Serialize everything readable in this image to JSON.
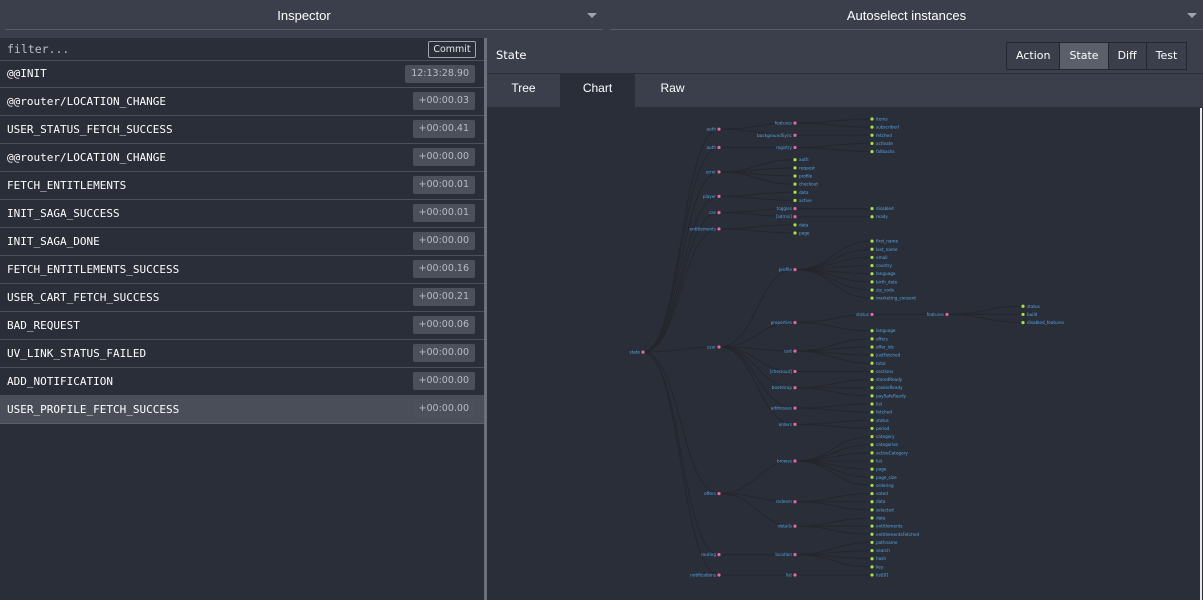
{
  "topbar": {
    "left_select": "Inspector",
    "right_select": "Autoselect instances"
  },
  "filter": {
    "placeholder": "filter...",
    "commit_label": "Commit"
  },
  "actions": [
    {
      "name": "@@INIT",
      "time": "12:13:28.90"
    },
    {
      "name": "@@router/LOCATION_CHANGE",
      "time": "+00:00.03"
    },
    {
      "name": "USER_STATUS_FETCH_SUCCESS",
      "time": "+00:00.41"
    },
    {
      "name": "@@router/LOCATION_CHANGE",
      "time": "+00:00.00"
    },
    {
      "name": "FETCH_ENTITLEMENTS",
      "time": "+00:00.01"
    },
    {
      "name": "INIT_SAGA_SUCCESS",
      "time": "+00:00.01"
    },
    {
      "name": "INIT_SAGA_DONE",
      "time": "+00:00.00"
    },
    {
      "name": "FETCH_ENTITLEMENTS_SUCCESS",
      "time": "+00:00.16"
    },
    {
      "name": "USER_CART_FETCH_SUCCESS",
      "time": "+00:00.21"
    },
    {
      "name": "BAD_REQUEST",
      "time": "+00:00.06"
    },
    {
      "name": "UV_LINK_STATUS_FAILED",
      "time": "+00:00.00"
    },
    {
      "name": "ADD_NOTIFICATION",
      "time": "+00:00.00"
    },
    {
      "name": "USER_PROFILE_FETCH_SUCCESS",
      "time": "+00:00.00",
      "selected": true
    }
  ],
  "state_panel": {
    "title": "State",
    "mode_tabs": [
      "Action",
      "State",
      "Diff",
      "Test"
    ],
    "active_mode": "State",
    "sub_tabs": [
      "Tree",
      "Chart",
      "Raw"
    ],
    "active_sub_tab": "Chart"
  },
  "colors": {
    "parent_node": "#e66aa2",
    "leaf_node": "#a8e14f",
    "link": "#24262c",
    "label": "#57a7e6"
  },
  "tree": {
    "name": "state",
    "children": [
      {
        "name": "auth",
        "children": [
          {
            "name": "features",
            "children": [
              {
                "name": "items"
              },
              {
                "name": "subscribed"
              }
            ]
          },
          {
            "name": "backgroundSync",
            "children": [
              {
                "name": "fetched"
              }
            ]
          }
        ]
      },
      {
        "name": "auth",
        "children": [
          {
            "name": "registry",
            "children": [
              {
                "name": "activate"
              },
              {
                "name": "fallbacks"
              }
            ]
          }
        ]
      },
      {
        "name": "error",
        "children": [
          {
            "name": "auth"
          },
          {
            "name": "request"
          },
          {
            "name": "profile"
          },
          {
            "name": "checkout"
          }
        ]
      },
      {
        "name": "player",
        "children": [
          {
            "name": "data"
          },
          {
            "name": "active"
          }
        ]
      },
      {
        "name": "cas",
        "children": [
          {
            "name": "toggles",
            "children": [
              {
                "name": "disabled"
              }
            ]
          },
          {
            "name": "[admin]",
            "children": [
              {
                "name": "ready"
              }
            ]
          }
        ]
      },
      {
        "name": "entitlements",
        "children": [
          {
            "name": "data"
          },
          {
            "name": "page"
          }
        ]
      },
      {
        "name": "user",
        "children": [
          {
            "name": "profile",
            "children": [
              {
                "name": "first_name"
              },
              {
                "name": "last_name"
              },
              {
                "name": "email"
              },
              {
                "name": "country"
              },
              {
                "name": "language"
              },
              {
                "name": "birth_date"
              },
              {
                "name": "zip_code"
              },
              {
                "name": "marketing_consent"
              }
            ]
          },
          {
            "name": "properties",
            "children": [
              {
                "name": "status",
                "children": [
                  {
                    "name": "features",
                    "children": [
                      {
                        "name": "status"
                      },
                      {
                        "name": "build"
                      },
                      {
                        "name": "disabled_features"
                      }
                    ]
                  }
                ]
              },
              {
                "name": "language"
              }
            ]
          },
          {
            "name": "cart",
            "children": [
              {
                "name": "offers"
              },
              {
                "name": "offer_ids"
              },
              {
                "name": "justFetched"
              },
              {
                "name": "total"
              }
            ]
          },
          {
            "name": "[checkout]",
            "children": [
              {
                "name": "sections"
              }
            ]
          },
          {
            "name": "bootstrap",
            "children": [
              {
                "name": "storedReady"
              },
              {
                "name": "cookieReady"
              },
              {
                "name": "paySafeReady"
              }
            ]
          },
          {
            "name": "addresses",
            "children": [
              {
                "name": "list"
              },
              {
                "name": "fetched"
              }
            ]
          },
          {
            "name": "orders",
            "children": [
              {
                "name": "status"
              },
              {
                "name": "period"
              }
            ]
          }
        ]
      },
      {
        "name": "offers",
        "children": [
          {
            "name": "browse",
            "children": [
              {
                "name": "category"
              },
              {
                "name": "categories"
              },
              {
                "name": "activeCategory"
              },
              {
                "name": "list"
              },
              {
                "name": "page"
              },
              {
                "name": "page_size"
              },
              {
                "name": "ordering"
              }
            ]
          },
          {
            "name": "redeem",
            "children": [
              {
                "name": "voted"
              },
              {
                "name": "data"
              },
              {
                "name": "selected"
              }
            ]
          },
          {
            "name": "details",
            "children": [
              {
                "name": "data"
              },
              {
                "name": "entitlements"
              },
              {
                "name": "entitlementsFetched"
              }
            ]
          }
        ]
      },
      {
        "name": "routing",
        "children": [
          {
            "name": "location",
            "children": [
              {
                "name": "pathname"
              },
              {
                "name": "search"
              },
              {
                "name": "hash"
              },
              {
                "name": "key"
              }
            ]
          }
        ]
      },
      {
        "name": "notifications",
        "children": [
          {
            "name": "list",
            "children": [
              {
                "name": "list[0]"
              }
            ]
          }
        ]
      }
    ]
  }
}
